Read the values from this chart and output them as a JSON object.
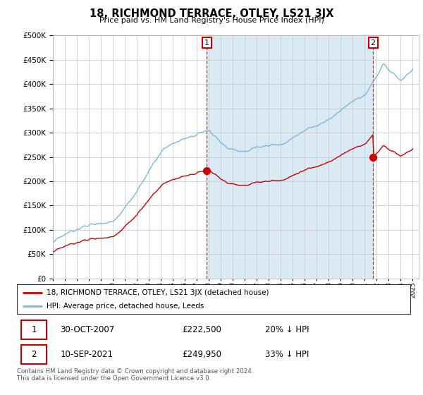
{
  "title": "18, RICHMOND TERRACE, OTLEY, LS21 3JX",
  "subtitle": "Price paid vs. HM Land Registry's House Price Index (HPI)",
  "ylim": [
    0,
    500000
  ],
  "xlim_start": 1995.0,
  "xlim_end": 2025.5,
  "legend_line1": "18, RICHMOND TERRACE, OTLEY, LS21 3JX (detached house)",
  "legend_line2": "HPI: Average price, detached house, Leeds",
  "sale1_label": "1",
  "sale1_date": "30-OCT-2007",
  "sale1_price": "£222,500",
  "sale1_hpi": "20% ↓ HPI",
  "sale1_year": 2007.83,
  "sale1_value": 222500,
  "sale2_label": "2",
  "sale2_date": "10-SEP-2021",
  "sale2_price": "£249,950",
  "sale2_hpi": "33% ↓ HPI",
  "sale2_year": 2021.69,
  "sale2_value": 249950,
  "footer": "Contains HM Land Registry data © Crown copyright and database right 2024.\nThis data is licensed under the Open Government Licence v3.0.",
  "hpi_color": "#7ab8d9",
  "price_color": "#cc0000",
  "shade_color": "#daeaf5",
  "background_color": "#ffffff",
  "grid_color": "#cccccc"
}
